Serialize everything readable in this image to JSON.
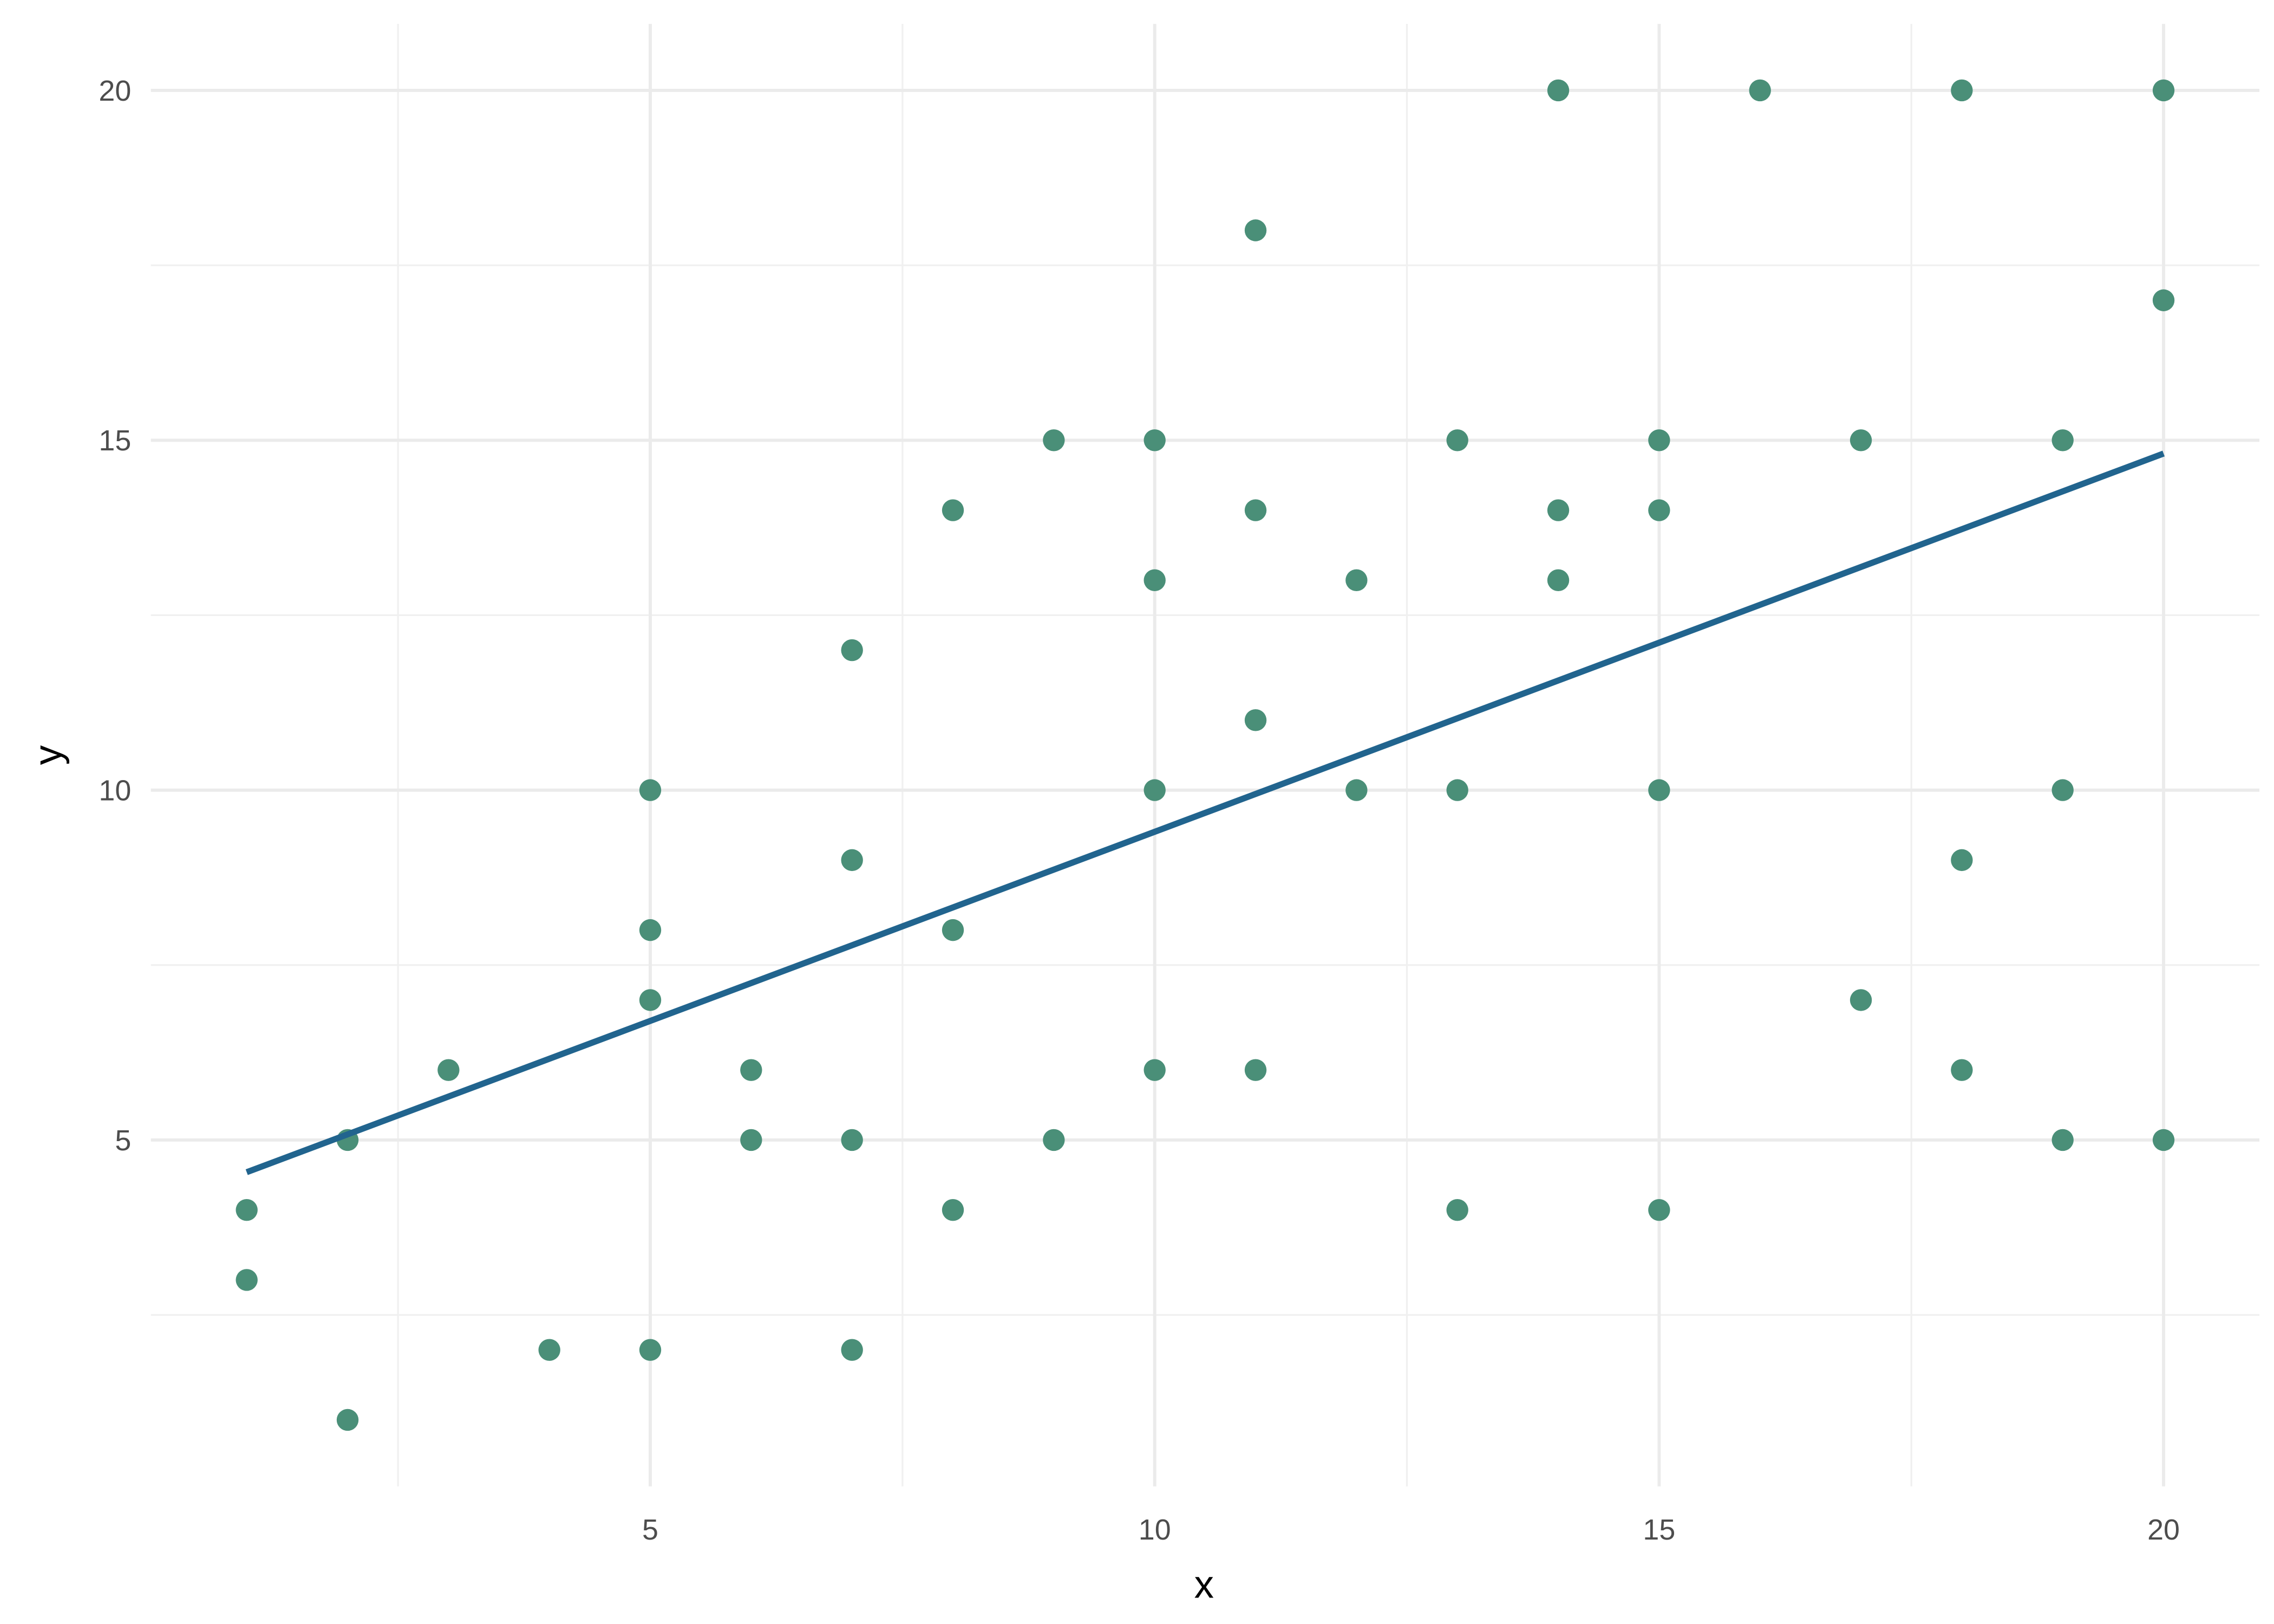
{
  "chart_data": {
    "type": "scatter",
    "x_label": "x",
    "y_label": "y",
    "xlim": [
      0.05,
      20.95
    ],
    "ylim": [
      0.05,
      20.95
    ],
    "xticks": [
      5,
      10,
      15,
      20
    ],
    "yticks": [
      5,
      10,
      15,
      20
    ],
    "xminorticks": [
      2.5,
      7.5,
      12.5,
      17.5
    ],
    "yminorticks": [
      2.5,
      7.5,
      12.5,
      17.5
    ],
    "grid": true,
    "x": [
      1,
      1,
      2,
      2,
      3,
      4,
      5,
      5,
      5,
      5,
      6,
      6,
      7,
      7,
      7,
      7,
      8,
      8,
      8,
      9,
      9,
      10,
      10,
      10,
      10,
      11,
      11,
      11,
      11,
      12,
      12,
      13,
      13,
      13,
      14,
      14,
      14,
      15,
      15,
      15,
      15,
      16,
      17,
      17,
      18,
      18,
      18,
      19,
      19,
      19,
      20,
      20,
      20
    ],
    "series": [
      {
        "color": "#4a8f78",
        "values": [
          4,
          3,
          5,
          1,
          6,
          2,
          10,
          8,
          7,
          2,
          6,
          5,
          12,
          9,
          5,
          2,
          14,
          8,
          4,
          15,
          5,
          15,
          13,
          10,
          6,
          18,
          14,
          11,
          6,
          13,
          10,
          15,
          10,
          4,
          20,
          14,
          13,
          15,
          14,
          10,
          4,
          20,
          15,
          7,
          20,
          9,
          6,
          15,
          10,
          5,
          20,
          17,
          5
        ]
      }
    ],
    "fit": {
      "type": "line",
      "color": "#21648e",
      "x": [
        1,
        20
      ],
      "values": [
        4.54,
        14.81
      ]
    }
  }
}
